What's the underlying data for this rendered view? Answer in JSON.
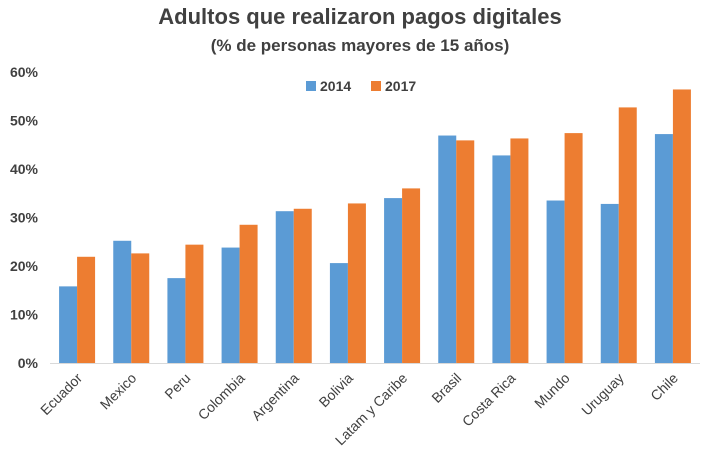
{
  "chart_data": {
    "type": "bar",
    "title": "Adultos que realizaron pagos digitales",
    "subtitle": "(% de personas mayores de 15 años)",
    "categories": [
      "Ecuador",
      "Mexico",
      "Peru",
      "Colombia",
      "Argentina",
      "Bolivia",
      "Latam y Caribe",
      "Brasil",
      "Costa Rica",
      "Mundo",
      "Uruguay",
      "Chile"
    ],
    "series": [
      {
        "name": "2014",
        "color": "#5B9BD5",
        "values": [
          15.8,
          25.2,
          17.5,
          23.8,
          31.3,
          20.6,
          34.0,
          46.9,
          42.8,
          33.5,
          32.8,
          47.2
        ]
      },
      {
        "name": "2017",
        "color": "#ED7D31",
        "values": [
          21.9,
          22.6,
          24.4,
          28.5,
          31.8,
          32.9,
          36.0,
          45.9,
          46.3,
          47.4,
          52.7,
          56.4
        ]
      }
    ],
    "ylim": [
      0,
      60
    ],
    "yticks": [
      0,
      10,
      20,
      30,
      40,
      50,
      60
    ],
    "ytick_labels": [
      "0%",
      "10%",
      "20%",
      "30%",
      "40%",
      "50%",
      "60%"
    ],
    "xlabel": "",
    "ylabel": "",
    "grid": false,
    "legend_position": "top-center"
  }
}
